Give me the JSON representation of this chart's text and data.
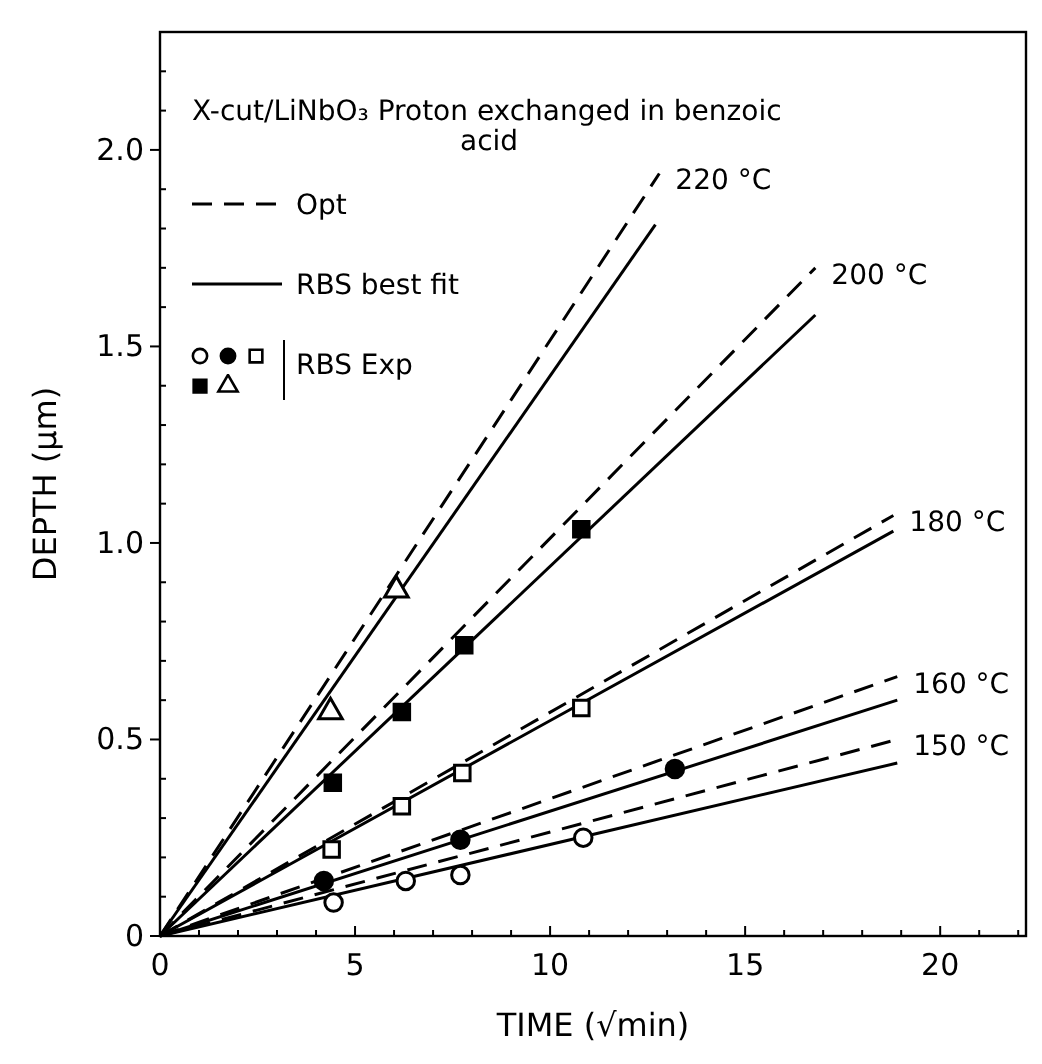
{
  "chart_data": {
    "type": "line",
    "title": "X-cut/LiNbO₃ Proton exchanged in benzoic acid",
    "xlabel": "TIME (√min)",
    "ylabel": "DEPTH (μm)",
    "xlim": [
      0,
      22.2
    ],
    "ylim": [
      0,
      2.3
    ],
    "xticks": [
      0,
      5,
      10,
      15,
      20,
      {
        "value": 1,
        "label": null
      },
      {
        "value": 2,
        "label": null
      },
      {
        "value": 3,
        "label": null
      },
      {
        "value": 4,
        "label": null
      },
      {
        "value": 6,
        "label": null
      },
      {
        "value": 7,
        "label": null
      },
      {
        "value": 8,
        "label": null
      },
      {
        "value": 9,
        "label": null
      },
      {
        "value": 11,
        "label": null
      },
      {
        "value": 12,
        "label": null
      },
      {
        "value": 13,
        "label": null
      },
      {
        "value": 14,
        "label": null
      },
      {
        "value": 16,
        "label": null
      },
      {
        "value": 17,
        "label": null
      },
      {
        "value": 18,
        "label": null
      },
      {
        "value": 19,
        "label": null
      },
      {
        "value": 21,
        "label": null
      },
      {
        "value": 22,
        "label": null
      }
    ],
    "yticks": [
      0,
      0.5,
      {
        "value": 1,
        "label": "1.0"
      },
      {
        "value": 1.5,
        "label": "1.5"
      },
      {
        "value": 2,
        "label": "2.0"
      },
      {
        "value": 0.1,
        "label": null
      },
      {
        "value": 0.2,
        "label": null
      },
      {
        "value": 0.3,
        "label": null
      },
      {
        "value": 0.4,
        "label": null
      },
      {
        "value": 0.6,
        "label": null
      },
      {
        "value": 0.7,
        "label": null
      },
      {
        "value": 0.8,
        "label": null
      },
      {
        "value": 0.9,
        "label": null
      },
      {
        "value": 1.1,
        "label": null
      },
      {
        "value": 1.2,
        "label": null
      },
      {
        "value": 1.3,
        "label": null
      },
      {
        "value": 1.4,
        "label": null
      },
      {
        "value": 1.6,
        "label": null
      },
      {
        "value": 1.7,
        "label": null
      },
      {
        "value": 1.8,
        "label": null
      },
      {
        "value": 1.9,
        "label": null
      },
      {
        "value": 2.1,
        "label": null
      },
      {
        "value": 2.2,
        "label": null
      }
    ],
    "grid": false,
    "legend": "top left",
    "series": [
      {
        "name": "Opt",
        "line_style": "dashed",
        "color": "#000000",
        "x": [
          0,
          12.8
        ],
        "values": [
          0,
          1.94
        ]
      },
      {
        "name": "RBS best fit",
        "line_style": "solid",
        "color": "#000000",
        "x": [
          0,
          12.7
        ],
        "values": [
          0,
          1.81
        ]
      },
      {
        "line_style": "dashed",
        "color": "#000000",
        "x": [
          0,
          16.8
        ],
        "values": [
          0,
          1.7
        ]
      },
      {
        "line_style": "solid",
        "color": "#000000",
        "x": [
          0,
          16.8
        ],
        "values": [
          0,
          1.58
        ]
      },
      {
        "line_style": "dashed",
        "color": "#000000",
        "x": [
          0,
          18.8
        ],
        "values": [
          0,
          1.07
        ]
      },
      {
        "line_style": "solid",
        "color": "#000000",
        "x": [
          0,
          18.8
        ],
        "values": [
          0,
          1.03
        ]
      },
      {
        "line_style": "dashed",
        "color": "#000000",
        "x": [
          0,
          18.9
        ],
        "values": [
          0,
          0.66
        ]
      },
      {
        "line_style": "solid",
        "color": "#000000",
        "x": [
          0,
          18.9
        ],
        "values": [
          0,
          0.6
        ]
      },
      {
        "line_style": "dashed",
        "color": "#000000",
        "x": [
          0,
          18.9
        ],
        "values": [
          0,
          0.5
        ]
      },
      {
        "line_style": "solid",
        "color": "#000000",
        "x": [
          0,
          18.9
        ],
        "values": [
          0,
          0.44
        ]
      },
      {
        "name": "RBS Exp",
        "type": "scatter",
        "marker": "circle",
        "color": "#ffffff",
        "x": [
          4.45,
          6.3,
          7.7,
          10.85
        ],
        "values": [
          0.085,
          0.14,
          0.155,
          0.25
        ]
      },
      {
        "type": "scatter",
        "marker": "circle",
        "color": "#000000",
        "x": [
          4.2,
          7.7,
          13.2
        ],
        "values": [
          0.14,
          0.245,
          0.425
        ]
      },
      {
        "type": "scatter",
        "marker": "square",
        "color": "#ffffff",
        "x": [
          4.4,
          6.2,
          7.75,
          10.8
        ],
        "values": [
          0.22,
          0.33,
          0.415,
          0.58
        ]
      },
      {
        "type": "scatter",
        "marker": "square",
        "color": "#000000",
        "x": [
          4.43,
          6.2,
          7.8,
          10.8
        ],
        "values": [
          0.39,
          0.57,
          0.74,
          1.035
        ]
      },
      {
        "type": "scatter",
        "marker": "triangle",
        "color": "#ffffff",
        "x": [
          4.37,
          6.06
        ],
        "values": [
          0.57,
          0.88
        ]
      }
    ],
    "annotations": [
      {
        "text": "220 °C",
        "x": 12.8,
        "y": 1.94
      },
      {
        "text": "200 °C",
        "x": 16.8,
        "y": 1.7
      },
      {
        "text": "180 °C",
        "x": 18.8,
        "y": 1.07
      },
      {
        "text": "160 °C",
        "x": 18.9,
        "y": 0.66
      },
      {
        "text": "150 °C",
        "x": 18.9,
        "y": 0.5
      }
    ]
  }
}
